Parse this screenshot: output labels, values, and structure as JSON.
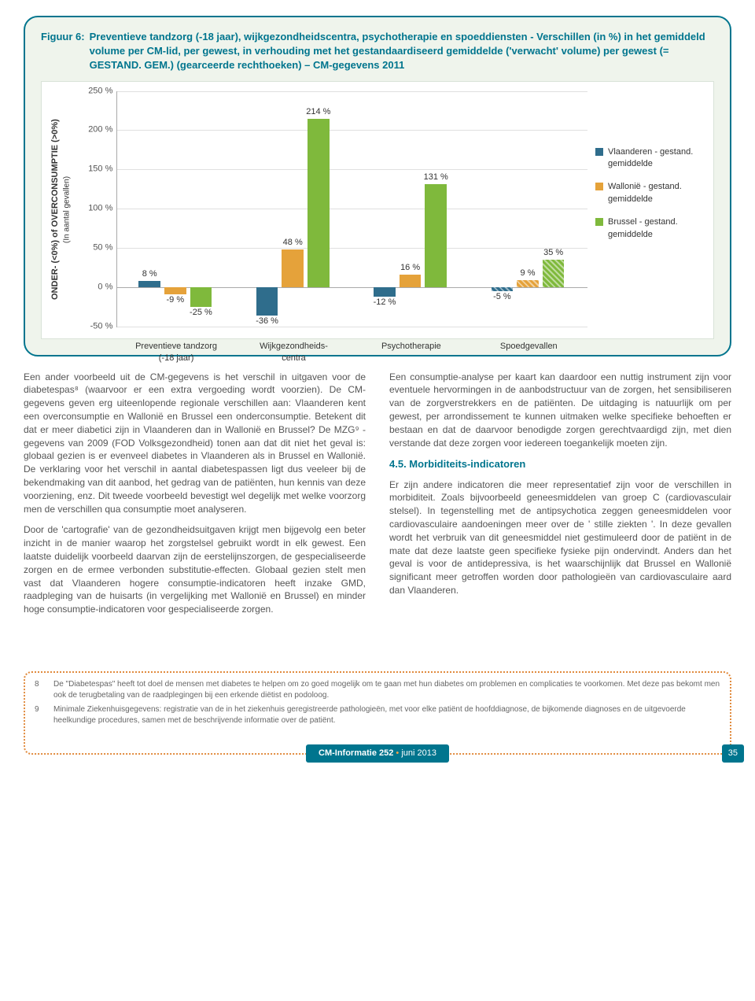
{
  "figure": {
    "label": "Figuur 6:",
    "title": "Preventieve tandzorg (-18 jaar), wijkgezondheidscentra, psychotherapie en spoeddiensten - Verschillen (in %) in het gemiddeld volume per CM-lid, per gewest, in verhouding met het gestandaardiseerd gemiddelde ('verwacht' volume) per gewest (= GESTAND. GEM.) (gearceerde rechthoeken) – CM-gegevens 2011"
  },
  "chart": {
    "type": "bar",
    "yaxis_label_main": "ONDER- (<0%) of OVERCONSUMPTIE (>0%)",
    "yaxis_label_sub": "(In aantal gevallen)",
    "ylim": [
      -50,
      250
    ],
    "yticks": [
      {
        "v": -50,
        "label": "-50 %"
      },
      {
        "v": 0,
        "label": "0 %"
      },
      {
        "v": 50,
        "label": "50 %"
      },
      {
        "v": 100,
        "label": "100 %"
      },
      {
        "v": 150,
        "label": "150 %"
      },
      {
        "v": 200,
        "label": "200 %"
      },
      {
        "v": 250,
        "label": "250 %"
      }
    ],
    "categories": [
      {
        "label": "Preventieve tandzorg\n(-18 jaar)",
        "vals": [
          8,
          -9,
          -25
        ],
        "hatched": [
          false,
          false,
          false
        ]
      },
      {
        "label": "Wijkgezondheids-\ncentra",
        "vals": [
          -36,
          48,
          214
        ],
        "hatched": [
          false,
          false,
          false
        ]
      },
      {
        "label": "Psychotherapie",
        "vals": [
          -12,
          16,
          131
        ],
        "hatched": [
          false,
          false,
          false
        ]
      },
      {
        "label": "Spoedgevallen",
        "vals": [
          -5,
          9,
          35
        ],
        "hatched": [
          true,
          true,
          true
        ]
      }
    ],
    "series": [
      {
        "name": "Vlaanderen - gestand. gemiddelde",
        "color": "#2f6d8c"
      },
      {
        "name": "Wallonië - gestand. gemiddelde",
        "color": "#e5a23a"
      },
      {
        "name": "Brussel - gestand. gemiddelde",
        "color": "#7fb93c"
      }
    ],
    "plot_bg": "#ffffff",
    "grid_color": "#e0e0e0"
  },
  "body": {
    "left": [
      "Een ander voorbeeld uit de CM-gegevens is het verschil in uitgaven voor de diabetespas⁸ (waarvoor er een extra vergoeding wordt voorzien). De CM-gegevens geven erg uiteenlopende regionale verschillen aan: Vlaanderen kent een overconsumptie en Wallonië en Brussel een onderconsumptie. Betekent dit dat er meer diabetici zijn in Vlaanderen dan in Wallonië en Brussel? De MZG⁹ -gegevens van 2009 (FOD Volksgezondheid) tonen aan dat dit niet het geval is: globaal gezien is er evenveel diabetes in Vlaanderen als in Brussel en Wallonië. De verklaring voor het verschil in aantal diabetespassen ligt dus veeleer bij de bekendmaking van dit aanbod, het gedrag van de patiënten, hun kennis van deze voorziening, enz. Dit tweede voorbeeld bevestigt wel degelijk met welke voorzorg men de verschillen qua consumptie moet analyseren.",
      "Door de 'cartografie' van de gezondheidsuitgaven krijgt men bijgevolg een beter inzicht in de manier waarop het zorgstelsel gebruikt wordt in elk gewest. Een laatste duidelijk voorbeeld daarvan zijn de eerstelijnszorgen, de gespecialiseerde zorgen en de ermee verbonden substitutie-effecten. Globaal gezien stelt men vast dat Vlaanderen hogere consumptie-indicatoren heeft inzake GMD, raadpleging van de huisarts (in vergelijking met Wallonië en Brussel) en minder hoge consumptie-indicatoren voor gespecialiseerde zorgen."
    ],
    "right_p1": "Een consumptie-analyse per kaart kan daardoor een nuttig instrument zijn voor eventuele hervormingen in de aanbodstructuur van de zorgen, het sensibiliseren van de zorgverstrekkers en de patiënten. De uitdaging is natuurlijk om per gewest, per arrondissement te kunnen uitmaken welke specifieke behoeften er bestaan en dat de daarvoor benodigde zorgen gerechtvaardigd zijn, met dien verstande dat deze zorgen voor iedereen toegankelijk moeten zijn.",
    "right_h": "4.5. Morbiditeits-indicatoren",
    "right_p2": "Er zijn andere indicatoren die meer representatief zijn voor de verschillen in morbiditeit. Zoals bijvoorbeeld geneesmiddelen van groep C (cardiovasculair stelsel). In tegenstelling met de antipsychotica zeggen geneesmiddelen voor cardiovasculaire aandoeningen meer over de ' stille ziekten '. In deze gevallen wordt het verbruik van dit geneesmiddel niet gestimuleerd door de patiënt in de mate dat deze laatste geen specifieke fysieke pijn ondervindt. Anders dan het geval is voor de antidepressiva, is het waarschijnlijk dat Brussel en Wallonië significant meer getroffen worden door pathologieën van cardiovasculaire aard dan Vlaanderen."
  },
  "footnotes": [
    {
      "n": "8",
      "t": "De \"Diabetespas\" heeft tot doel de mensen met diabetes te helpen om zo goed mogelijk om te gaan met hun diabetes om problemen en complicaties te voorkomen. Met deze pas bekomt men ook de terugbetaling van de raadplegingen bij een erkende diëtist en podoloog."
    },
    {
      "n": "9",
      "t": "Minimale Ziekenhuisgegevens: registratie van de in het ziekenhuis geregistreerde pathologieën, met voor elke patiënt de hoofddiagnose, de bijkomende diagnoses en de uitgevoerde heelkundige procedures, samen met de beschrijvende informatie over de patiënt."
    }
  ],
  "footer": {
    "journal": "CM-Informatie 252",
    "sep": " • ",
    "date": "juni 2013",
    "page": "35"
  }
}
